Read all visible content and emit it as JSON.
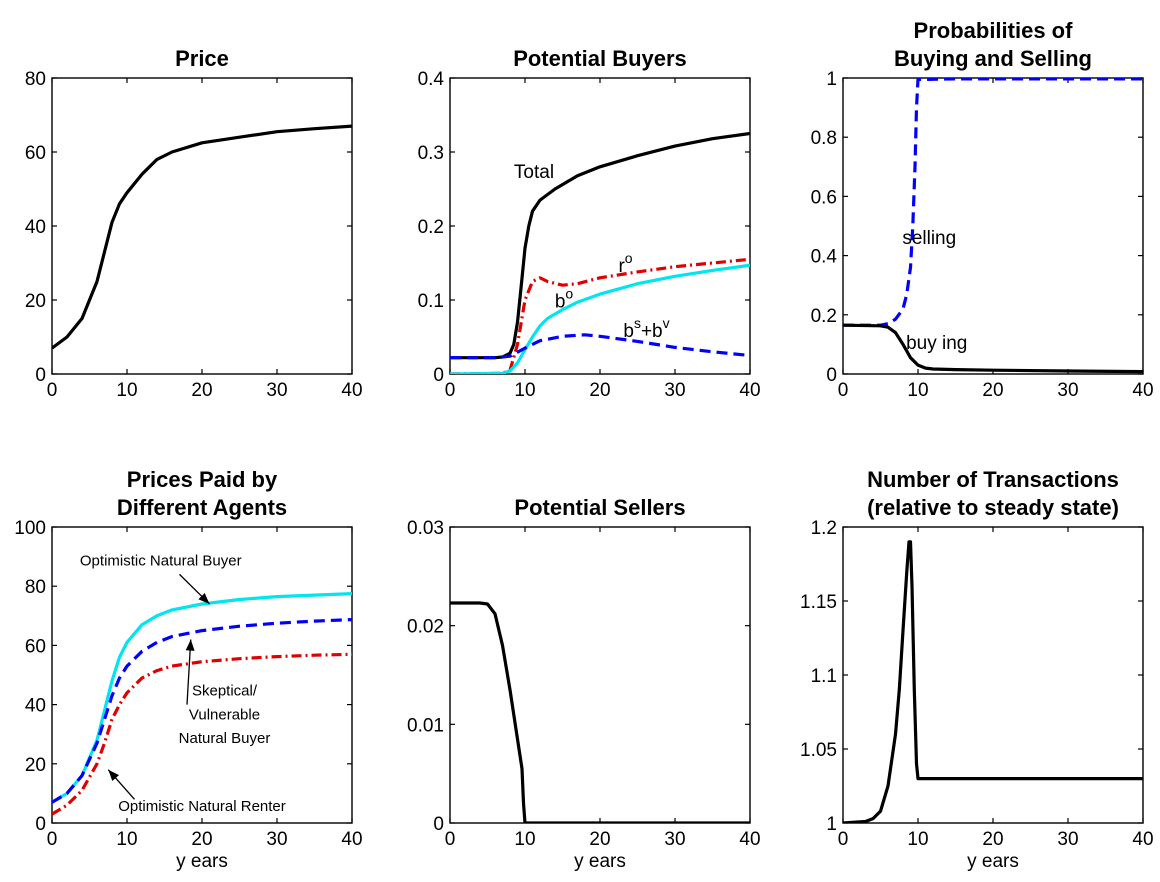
{
  "chart_data": [
    {
      "id": "p1",
      "type": "line",
      "title": [
        "Price"
      ],
      "xlabel": "",
      "ylabel": "",
      "xlim": [
        0,
        40
      ],
      "ylim": [
        0,
        80
      ],
      "xticks": [
        0,
        10,
        20,
        30,
        40
      ],
      "xtick_labels": [
        "0",
        "10",
        "20",
        "30",
        "40"
      ],
      "yticks": [
        0,
        20,
        40,
        60,
        80
      ],
      "ytick_labels": [
        "0",
        "20",
        "40",
        "60",
        "80"
      ],
      "grid": false,
      "series": [
        {
          "color": "#000000",
          "dash": "solid",
          "x": [
            0,
            2,
            4,
            6,
            7,
            8,
            9,
            10,
            12,
            14,
            16,
            20,
            25,
            30,
            35,
            40
          ],
          "y": [
            7,
            10,
            15,
            25,
            33,
            41,
            46,
            49,
            54,
            58,
            60,
            62.5,
            64,
            65.5,
            66.3,
            67
          ]
        }
      ],
      "annotations": []
    },
    {
      "id": "p2",
      "type": "line",
      "title": [
        "Potential Buyers"
      ],
      "xlabel": "",
      "ylabel": "",
      "xlim": [
        0,
        40
      ],
      "ylim": [
        0,
        0.4
      ],
      "xticks": [
        0,
        10,
        20,
        30,
        40
      ],
      "xtick_labels": [
        "0",
        "10",
        "20",
        "30",
        "40"
      ],
      "yticks": [
        0,
        0.1,
        0.2,
        0.3,
        0.4
      ],
      "ytick_labels": [
        "0",
        "0.1",
        "0.2",
        "0.3",
        "0.4"
      ],
      "grid": false,
      "series": [
        {
          "color": "#000000",
          "dash": "solid",
          "x": [
            0,
            6,
            7,
            8,
            8.5,
            9,
            9.5,
            10,
            10.5,
            11,
            12,
            14,
            17,
            20,
            25,
            30,
            35,
            40
          ],
          "y": [
            0.022,
            0.022,
            0.023,
            0.028,
            0.04,
            0.07,
            0.12,
            0.17,
            0.2,
            0.22,
            0.235,
            0.25,
            0.268,
            0.28,
            0.295,
            0.308,
            0.318,
            0.325
          ]
        },
        {
          "color": "#e00000",
          "dash": "dashdot",
          "x": [
            0,
            7,
            8,
            9,
            10,
            11,
            12,
            13,
            15,
            17,
            20,
            25,
            30,
            35,
            40
          ],
          "y": [
            0,
            0.001,
            0.005,
            0.04,
            0.1,
            0.125,
            0.13,
            0.125,
            0.12,
            0.122,
            0.13,
            0.138,
            0.145,
            0.15,
            0.155
          ]
        },
        {
          "color": "#00e5ee",
          "dash": "solid",
          "x": [
            0,
            7,
            8,
            9,
            10,
            11,
            12,
            13,
            15,
            17,
            20,
            25,
            30,
            35,
            40
          ],
          "y": [
            0,
            0.001,
            0.004,
            0.015,
            0.033,
            0.05,
            0.065,
            0.075,
            0.087,
            0.097,
            0.108,
            0.122,
            0.132,
            0.14,
            0.147
          ]
        },
        {
          "color": "#0000ff",
          "dash": "dashed",
          "x": [
            0,
            6,
            8,
            10,
            12,
            15,
            18,
            20,
            25,
            30,
            35,
            40
          ],
          "y": [
            0.022,
            0.022,
            0.024,
            0.035,
            0.045,
            0.051,
            0.053,
            0.051,
            0.044,
            0.036,
            0.03,
            0.025
          ]
        }
      ],
      "annotations": [
        {
          "text": "Total",
          "x": 11.2,
          "y": 0.265
        },
        {
          "text": "r",
          "sup": "o",
          "x": 23.4,
          "y": 0.138
        },
        {
          "text": "b",
          "sup": "o",
          "x": 15.2,
          "y": 0.09
        },
        {
          "text": "b",
          "sup": "s",
          "mid": "+b",
          "sup2": "v",
          "x": 26.2,
          "y": 0.05
        }
      ]
    },
    {
      "id": "p3",
      "type": "line",
      "title": [
        "Probabilities of",
        "Buying and Selling"
      ],
      "xlabel": "",
      "ylabel": "",
      "xlim": [
        0,
        40
      ],
      "ylim": [
        0,
        1
      ],
      "xticks": [
        0,
        10,
        20,
        30,
        40
      ],
      "xtick_labels": [
        "0",
        "10",
        "20",
        "30",
        "40"
      ],
      "yticks": [
        0,
        0.2,
        0.4,
        0.6,
        0.8,
        1
      ],
      "ytick_labels": [
        "0",
        "0.2",
        "0.4",
        "0.6",
        "0.8",
        "1"
      ],
      "grid": false,
      "series": [
        {
          "color": "#0000ff",
          "dash": "dashed",
          "x": [
            0,
            5,
            6,
            7,
            8,
            8.5,
            9,
            9.3,
            9.6,
            9.8,
            10,
            15,
            20,
            30,
            40
          ],
          "y": [
            0.165,
            0.165,
            0.17,
            0.185,
            0.22,
            0.27,
            0.36,
            0.5,
            0.7,
            0.9,
            0.995,
            0.997,
            0.997,
            0.997,
            0.997
          ]
        },
        {
          "color": "#000000",
          "dash": "solid",
          "x": [
            0,
            5,
            6,
            7,
            8,
            9,
            10,
            11,
            12,
            15,
            20,
            30,
            40
          ],
          "y": [
            0.165,
            0.163,
            0.158,
            0.14,
            0.1,
            0.055,
            0.03,
            0.02,
            0.017,
            0.015,
            0.013,
            0.01,
            0.008
          ]
        }
      ],
      "annotations": [
        {
          "text": "selling",
          "x": 11.5,
          "y": 0.44
        },
        {
          "text": "buy ing",
          "x": 12.5,
          "y": 0.085
        }
      ]
    },
    {
      "id": "p4",
      "type": "line",
      "title": [
        "Prices Paid by",
        "Different Agents"
      ],
      "xlabel": "y ears",
      "ylabel": "",
      "xlim": [
        0,
        40
      ],
      "ylim": [
        0,
        100
      ],
      "xticks": [
        0,
        10,
        20,
        30,
        40
      ],
      "xtick_labels": [
        "0",
        "10",
        "20",
        "30",
        "40"
      ],
      "yticks": [
        0,
        20,
        40,
        60,
        80,
        100
      ],
      "ytick_labels": [
        "0",
        "20",
        "40",
        "60",
        "80",
        "100"
      ],
      "grid": false,
      "series": [
        {
          "color": "#00e5ee",
          "dash": "solid",
          "x": [
            0,
            2,
            4,
            6,
            7,
            8,
            9,
            10,
            12,
            14,
            16,
            20,
            25,
            30,
            35,
            40
          ],
          "y": [
            7,
            10,
            16,
            28,
            38,
            48,
            56,
            61,
            67,
            70,
            72,
            74,
            75.5,
            76.5,
            77,
            77.5
          ]
        },
        {
          "color": "#0000ff",
          "dash": "dashed",
          "x": [
            0,
            2,
            4,
            6,
            7,
            8,
            9,
            10,
            12,
            14,
            16,
            20,
            25,
            30,
            35,
            40
          ],
          "y": [
            7,
            10,
            16,
            27,
            35,
            43,
            49,
            53,
            58,
            61,
            63,
            65,
            66.5,
            67.5,
            68.2,
            68.7
          ]
        },
        {
          "color": "#e00000",
          "dash": "dashdot",
          "x": [
            0,
            2,
            4,
            6,
            7,
            8,
            9,
            10,
            12,
            14,
            16,
            20,
            25,
            30,
            35,
            40
          ],
          "y": [
            3,
            6,
            11,
            20,
            27,
            35,
            40,
            44,
            49,
            51.5,
            53,
            54.5,
            55.5,
            56.2,
            56.7,
            57
          ]
        }
      ],
      "annotations": [
        {
          "text": "Optimistic Natural Buyer",
          "x": 14.5,
          "y": 87,
          "size": "small"
        },
        {
          "text": "Skeptical/",
          "x": 23,
          "y": 43,
          "size": "small"
        },
        {
          "text": "Vulnerable",
          "x": 23,
          "y": 35,
          "size": "small"
        },
        {
          "text": "Natural Buyer",
          "x": 23,
          "y": 27,
          "size": "small"
        },
        {
          "text": "Optimistic Natural Renter",
          "x": 20,
          "y": 4,
          "size": "small"
        }
      ],
      "arrows": [
        {
          "from": [
            17,
            84
          ],
          "to": [
            21,
            74
          ]
        },
        {
          "from": [
            18,
            40
          ],
          "to": [
            18.5,
            62
          ]
        },
        {
          "from": [
            11,
            8
          ],
          "to": [
            7.5,
            18
          ]
        }
      ]
    },
    {
      "id": "p5",
      "type": "line",
      "title": [
        "Potential Sellers"
      ],
      "xlabel": "y ears",
      "ylabel": "",
      "xlim": [
        0,
        40
      ],
      "ylim": [
        0,
        0.03
      ],
      "xticks": [
        0,
        10,
        20,
        30,
        40
      ],
      "xtick_labels": [
        "0",
        "10",
        "20",
        "30",
        "40"
      ],
      "yticks": [
        0,
        0.01,
        0.02,
        0.03
      ],
      "ytick_labels": [
        "0",
        "0.01",
        "0.02",
        "0.03"
      ],
      "grid": false,
      "series": [
        {
          "color": "#000000",
          "dash": "solid",
          "x": [
            0,
            4,
            5,
            6,
            7,
            8,
            9,
            9.6,
            9.8,
            10,
            15,
            20,
            30,
            40
          ],
          "y": [
            0.0223,
            0.0223,
            0.0222,
            0.0212,
            0.018,
            0.0135,
            0.0085,
            0.0055,
            0.002,
            0,
            0,
            0,
            0,
            0
          ]
        }
      ],
      "annotations": []
    },
    {
      "id": "p6",
      "type": "line",
      "title": [
        "Number of Transactions",
        "(relative to steady state)"
      ],
      "xlabel": "y ears",
      "ylabel": "",
      "xlim": [
        0,
        40
      ],
      "ylim": [
        1,
        1.2
      ],
      "xticks": [
        0,
        10,
        20,
        30,
        40
      ],
      "xtick_labels": [
        "0",
        "10",
        "20",
        "30",
        "40"
      ],
      "yticks": [
        1,
        1.05,
        1.1,
        1.15,
        1.2
      ],
      "ytick_labels": [
        "1",
        "1.05",
        "1.1",
        "1.15",
        "1.2"
      ],
      "grid": false,
      "series": [
        {
          "color": "#000000",
          "dash": "solid",
          "x": [
            0,
            3,
            4,
            5,
            6,
            7,
            7.5,
            8,
            8.5,
            8.8,
            9,
            9.2,
            9.5,
            9.8,
            10,
            15,
            20,
            30,
            40
          ],
          "y": [
            1,
            1.001,
            1.003,
            1.008,
            1.025,
            1.06,
            1.09,
            1.13,
            1.17,
            1.19,
            1.19,
            1.16,
            1.09,
            1.04,
            1.03,
            1.03,
            1.03,
            1.03,
            1.03
          ]
        }
      ],
      "annotations": []
    }
  ]
}
